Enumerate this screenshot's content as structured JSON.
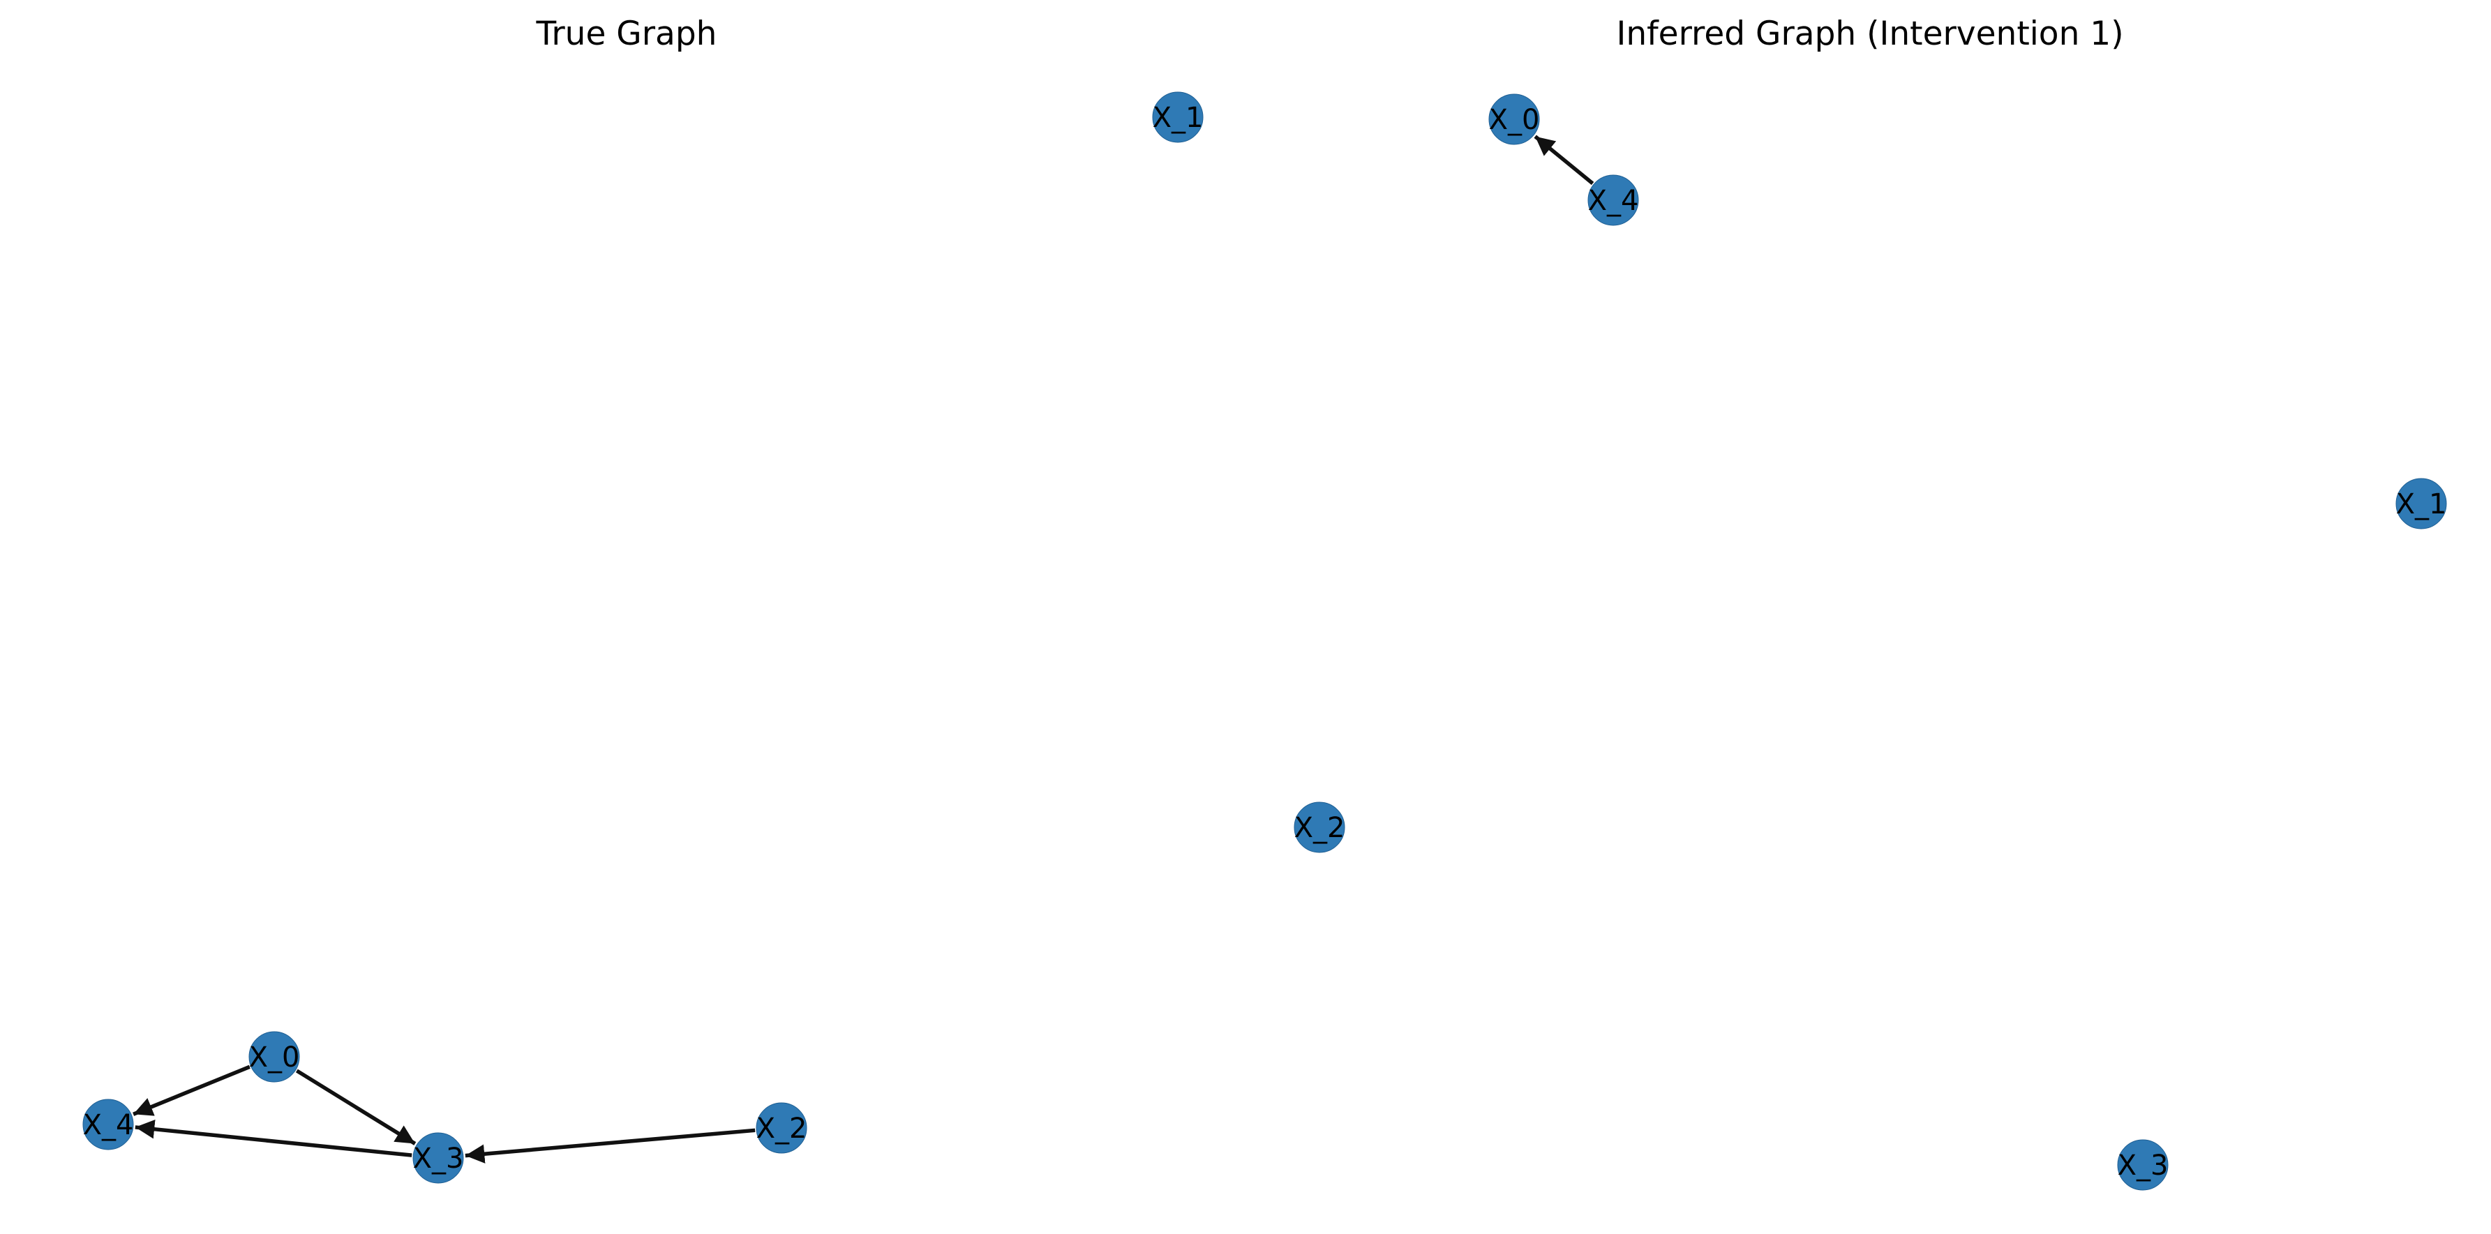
{
  "colors": {
    "node_fill": "#2f7ab5",
    "edge": "#111111",
    "background": "#ffffff"
  },
  "panels": [
    {
      "title": "True Graph",
      "nodes": [
        "X_0",
        "X_1",
        "X_2",
        "X_3",
        "X_4"
      ],
      "edges": [
        [
          "X_0",
          "X_4"
        ],
        [
          "X_0",
          "X_3"
        ],
        [
          "X_3",
          "X_4"
        ],
        [
          "X_2",
          "X_3"
        ]
      ]
    },
    {
      "title": "Inferred Graph (Intervention 1)",
      "nodes": [
        "X_0",
        "X_1",
        "X_2",
        "X_3",
        "X_4"
      ],
      "edges": [
        [
          "X_4",
          "X_0"
        ]
      ]
    }
  ]
}
